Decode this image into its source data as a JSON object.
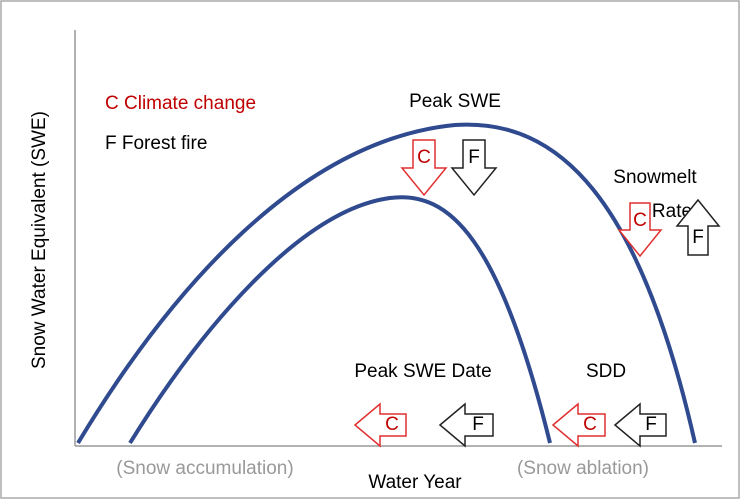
{
  "legend": {
    "climate": "C Climate change",
    "fire": "F Forest fire"
  },
  "y_axis_label": "Snow Water Equivalent (SWE)",
  "x_axis_label": "Water Year",
  "accumulation": "(Snow accumulation)",
  "ablation": "(Snow ablation)",
  "labels": {
    "peak_swe": "Peak SWE",
    "snowmelt": "Snowmelt",
    "rate": "Rate",
    "peak_swe_date": "Peak SWE Date",
    "sdd": "SDD"
  },
  "arrows": [
    {
      "label": "C"
    },
    {
      "label": "F"
    },
    {
      "label": "C"
    },
    {
      "label": "F"
    },
    {
      "label": "C"
    },
    {
      "label": "F"
    },
    {
      "label": "C"
    },
    {
      "label": "F"
    }
  ]
}
